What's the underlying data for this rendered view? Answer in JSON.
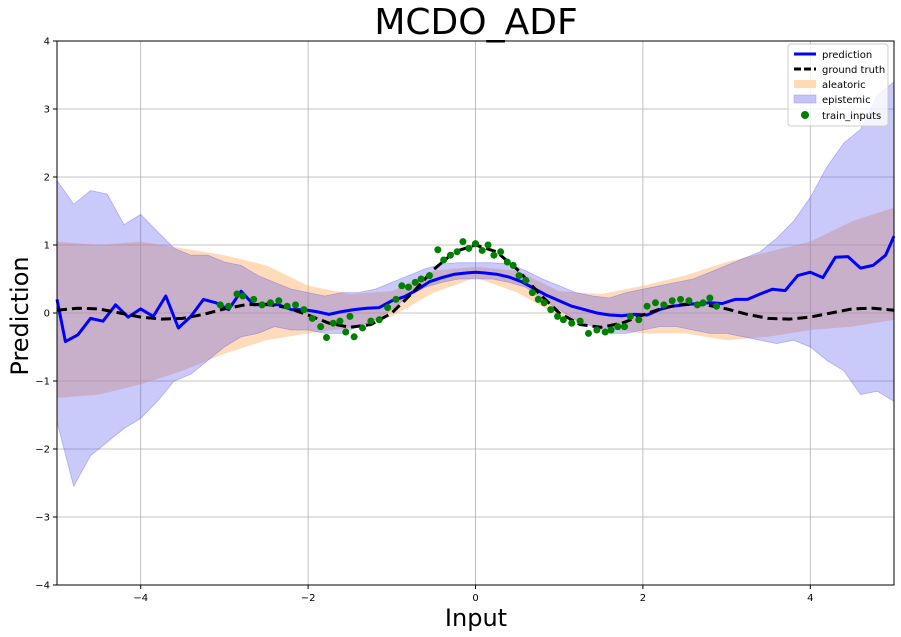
{
  "chart_data": {
    "type": "line",
    "title": "MCDO_ADF",
    "xlabel": "Input",
    "ylabel": "Prediction",
    "xlim": [
      -5,
      5
    ],
    "ylim": [
      -4,
      4
    ],
    "xticks": [
      -4,
      -2,
      0,
      2,
      4
    ],
    "yticks": [
      -4,
      -3,
      -2,
      -1,
      0,
      1,
      2,
      3,
      4
    ],
    "xtick_labels": [
      "−4",
      "−2",
      "0",
      "2",
      "4"
    ],
    "ytick_labels": [
      "−4",
      "−3",
      "−2",
      "−1",
      "0",
      "1",
      "2",
      "3",
      "4"
    ],
    "grid": true,
    "legend_position": "top-right",
    "legend": [
      "prediction",
      "ground truth",
      "aleatoric",
      "epistemic",
      "train_inputs"
    ],
    "colors": {
      "prediction": "#0000ff",
      "ground_truth": "#000000",
      "aleatoric": "#ffdab3",
      "epistemic": "#b0b0f8",
      "overlap": "#cdb0d8",
      "train_inputs": "#008000"
    },
    "ground_truth": {
      "x": [
        -5,
        -4.75,
        -4.5,
        -4.25,
        -4,
        -3.75,
        -3.5,
        -3.25,
        -3,
        -2.75,
        -2.5,
        -2.25,
        -2,
        -1.75,
        -1.5,
        -1.25,
        -1,
        -0.75,
        -0.5,
        -0.25,
        0,
        0.25,
        0.5,
        0.75,
        1,
        1.25,
        1.5,
        1.75,
        2,
        2.25,
        2.5,
        2.75,
        3,
        3.25,
        3.5,
        3.75,
        4,
        4.25,
        4.5,
        4.75,
        5
      ],
      "y": [
        0.04,
        0.07,
        0.06,
        0.0,
        -0.06,
        -0.09,
        -0.08,
        -0.02,
        0.06,
        0.12,
        0.13,
        0.08,
        -0.03,
        -0.15,
        -0.21,
        -0.17,
        0.0,
        0.3,
        0.64,
        0.9,
        1.0,
        0.9,
        0.64,
        0.3,
        0.0,
        -0.17,
        -0.21,
        -0.15,
        -0.03,
        0.08,
        0.13,
        0.12,
        0.06,
        -0.02,
        -0.08,
        -0.09,
        -0.06,
        0.0,
        0.06,
        0.07,
        0.04
      ]
    },
    "prediction": {
      "x": [
        -5,
        -4.9,
        -4.75,
        -4.6,
        -4.45,
        -4.3,
        -4.15,
        -4.0,
        -3.85,
        -3.7,
        -3.55,
        -3.4,
        -3.25,
        -3.1,
        -2.95,
        -2.8,
        -2.65,
        -2.5,
        -2.35,
        -2.2,
        -2.05,
        -1.9,
        -1.75,
        -1.6,
        -1.45,
        -1.3,
        -1.15,
        -1.0,
        -0.85,
        -0.7,
        -0.55,
        -0.4,
        -0.25,
        -0.1,
        0.0,
        0.1,
        0.25,
        0.4,
        0.55,
        0.7,
        0.85,
        1.0,
        1.15,
        1.3,
        1.45,
        1.6,
        1.75,
        1.9,
        2.05,
        2.2,
        2.35,
        2.5,
        2.65,
        2.8,
        2.95,
        3.1,
        3.25,
        3.4,
        3.55,
        3.7,
        3.85,
        4.0,
        4.15,
        4.3,
        4.45,
        4.6,
        4.75,
        4.9,
        5.0
      ],
      "y": [
        0.2,
        -0.42,
        -0.32,
        -0.08,
        -0.12,
        0.12,
        -0.06,
        0.06,
        -0.05,
        0.25,
        -0.22,
        -0.05,
        0.2,
        0.15,
        0.05,
        0.32,
        0.12,
        0.12,
        0.12,
        0.05,
        0.05,
        0.02,
        -0.02,
        0.02,
        0.05,
        0.07,
        0.08,
        0.18,
        0.24,
        0.34,
        0.46,
        0.52,
        0.57,
        0.59,
        0.6,
        0.59,
        0.57,
        0.53,
        0.46,
        0.36,
        0.26,
        0.18,
        0.1,
        0.05,
        0.0,
        -0.03,
        -0.04,
        -0.02,
        -0.03,
        0.05,
        0.1,
        0.12,
        0.14,
        0.15,
        0.14,
        0.2,
        0.2,
        0.28,
        0.35,
        0.33,
        0.55,
        0.6,
        0.52,
        0.82,
        0.83,
        0.66,
        0.7,
        0.85,
        1.13
      ]
    },
    "aleatoric": {
      "x": [
        -5,
        -4.5,
        -4.0,
        -3.5,
        -3.0,
        -2.5,
        -2.0,
        -1.5,
        -1.0,
        -0.5,
        0.0,
        0.5,
        1.0,
        1.5,
        2.0,
        2.5,
        3.0,
        3.5,
        4.0,
        4.5,
        5.0
      ],
      "upper": [
        1.05,
        1.0,
        1.05,
        0.95,
        0.85,
        0.7,
        0.4,
        0.28,
        0.32,
        0.62,
        0.68,
        0.62,
        0.32,
        0.28,
        0.4,
        0.55,
        0.75,
        0.9,
        1.05,
        1.35,
        1.55
      ],
      "lower": [
        -1.25,
        -1.2,
        -1.05,
        -0.85,
        -0.6,
        -0.4,
        -0.3,
        -0.22,
        -0.05,
        0.3,
        0.52,
        0.3,
        -0.05,
        -0.22,
        -0.3,
        -0.3,
        -0.4,
        -0.35,
        -0.25,
        -0.2,
        -0.1
      ]
    },
    "epistemic": {
      "x": [
        -5,
        -4.8,
        -4.6,
        -4.4,
        -4.2,
        -4.0,
        -3.8,
        -3.6,
        -3.4,
        -3.2,
        -3.0,
        -2.8,
        -2.6,
        -2.4,
        -2.2,
        -2.0,
        -1.8,
        -1.6,
        -1.4,
        -1.2,
        -1.0,
        -0.8,
        -0.6,
        -0.4,
        -0.2,
        0.0,
        0.2,
        0.4,
        0.6,
        0.8,
        1.0,
        1.2,
        1.4,
        1.6,
        1.8,
        2.0,
        2.2,
        2.4,
        2.6,
        2.8,
        3.0,
        3.2,
        3.4,
        3.6,
        3.8,
        4.0,
        4.2,
        4.4,
        4.6,
        4.8,
        5.0
      ],
      "upper": [
        1.95,
        1.6,
        1.8,
        1.75,
        1.3,
        1.45,
        1.2,
        0.95,
        0.85,
        0.85,
        0.75,
        0.7,
        0.55,
        0.45,
        0.35,
        0.3,
        0.25,
        0.3,
        0.3,
        0.35,
        0.45,
        0.55,
        0.65,
        0.72,
        0.74,
        0.74,
        0.74,
        0.72,
        0.62,
        0.5,
        0.4,
        0.3,
        0.25,
        0.22,
        0.3,
        0.35,
        0.4,
        0.45,
        0.5,
        0.6,
        0.7,
        0.8,
        0.9,
        1.1,
        1.35,
        1.7,
        2.15,
        2.5,
        2.7,
        3.2,
        3.4
      ],
      "lower": [
        -1.6,
        -2.55,
        -2.1,
        -1.9,
        -1.7,
        -1.55,
        -1.3,
        -1.0,
        -0.9,
        -0.7,
        -0.5,
        -0.35,
        -0.3,
        -0.2,
        -0.25,
        -0.25,
        -0.3,
        -0.3,
        -0.2,
        -0.1,
        0.05,
        0.25,
        0.38,
        0.45,
        0.5,
        0.5,
        0.5,
        0.45,
        0.38,
        0.2,
        0.05,
        -0.1,
        -0.2,
        -0.3,
        -0.3,
        -0.25,
        -0.2,
        -0.2,
        -0.25,
        -0.3,
        -0.3,
        -0.35,
        -0.4,
        -0.45,
        -0.4,
        -0.5,
        -0.7,
        -0.85,
        -1.2,
        -1.15,
        -1.3
      ]
    },
    "train_inputs": {
      "x": [
        -3.05,
        -2.95,
        -2.85,
        -2.78,
        -2.65,
        -2.55,
        -2.45,
        -2.35,
        -2.25,
        -2.15,
        -2.05,
        -1.95,
        -1.85,
        -1.78,
        -1.7,
        -1.62,
        -1.55,
        -1.5,
        -1.45,
        -1.35,
        -1.25,
        -1.15,
        -1.05,
        -0.95,
        -0.88,
        -0.8,
        -0.72,
        -0.65,
        -0.55,
        -0.45,
        -0.38,
        -0.3,
        -0.22,
        -0.15,
        -0.08,
        0.0,
        0.08,
        0.15,
        0.22,
        0.3,
        0.38,
        0.45,
        0.52,
        0.6,
        0.68,
        0.75,
        0.82,
        0.9,
        0.98,
        1.05,
        1.15,
        1.25,
        1.35,
        1.45,
        1.55,
        1.62,
        1.7,
        1.78,
        1.85,
        1.95,
        2.05,
        2.15,
        2.25,
        2.35,
        2.45,
        2.55,
        2.65,
        2.72,
        2.8,
        2.88
      ],
      "y": [
        0.12,
        0.1,
        0.28,
        0.25,
        0.2,
        0.12,
        0.15,
        0.18,
        0.1,
        0.12,
        0.05,
        -0.08,
        -0.2,
        -0.36,
        -0.15,
        -0.12,
        -0.28,
        -0.05,
        -0.35,
        -0.22,
        -0.12,
        -0.1,
        0.08,
        0.2,
        0.4,
        0.38,
        0.45,
        0.5,
        0.55,
        0.93,
        0.78,
        0.85,
        0.9,
        1.05,
        0.95,
        1.02,
        0.92,
        1.0,
        0.85,
        0.9,
        0.75,
        0.7,
        0.55,
        0.48,
        0.3,
        0.2,
        0.15,
        0.05,
        -0.05,
        -0.1,
        -0.15,
        -0.12,
        -0.3,
        -0.25,
        -0.28,
        -0.25,
        -0.2,
        -0.2,
        -0.05,
        -0.1,
        0.1,
        0.15,
        0.12,
        0.18,
        0.2,
        0.18,
        0.12,
        0.15,
        0.22,
        0.1
      ]
    }
  }
}
